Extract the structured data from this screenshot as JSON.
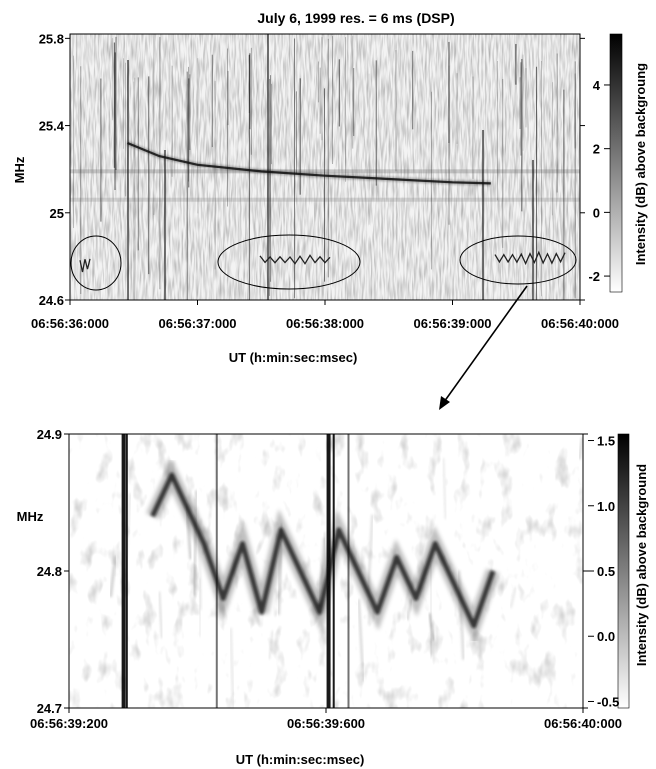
{
  "chart_data": [
    {
      "type": "heatmap",
      "title": "July 6, 1999   res. = 6 ms  (DSP)",
      "xlabel": "UT (h:min:sec:msec)",
      "ylabel": "MHz",
      "x_ticks": [
        "06:56:36:000",
        "06:56:37:000",
        "06:56:38:000",
        "06:56:39:000",
        "06:56:40:000"
      ],
      "x_range_s": [
        0,
        4
      ],
      "y_ticks": [
        "25.8",
        "25.4",
        "25",
        "24.6"
      ],
      "ylim": [
        24.6,
        25.82
      ],
      "colorbar": {
        "label": "Intensity (dB) above backgroung",
        "ticks": [
          "4",
          "2",
          "0",
          "-2"
        ],
        "range": [
          -2.5,
          5.6
        ]
      },
      "features": {
        "drifting_burst": [
          {
            "t": 0.45,
            "f": 25.32
          },
          {
            "t": 0.7,
            "f": 25.26
          },
          {
            "t": 1.0,
            "f": 25.22
          },
          {
            "t": 1.5,
            "f": 25.19
          },
          {
            "t": 2.0,
            "f": 25.17
          },
          {
            "t": 2.5,
            "f": 25.155
          },
          {
            "t": 3.0,
            "f": 25.14
          },
          {
            "t": 3.3,
            "f": 25.135
          }
        ],
        "steady_bands_mhz": [
          25.19,
          25.06
        ]
      }
    },
    {
      "type": "heatmap",
      "xlabel": "UT (h:min:sec:msec)",
      "ylabel": "MHz",
      "x_ticks": [
        "06:56:39:200",
        "06:56:39:600",
        "06:56:40:000"
      ],
      "x_range_s": [
        39.2,
        40.0
      ],
      "y_ticks": [
        "24.9",
        "24.8",
        "24.7"
      ],
      "ylim": [
        24.7,
        24.9
      ],
      "colorbar": {
        "label": "Intensity (dB) above background",
        "ticks": [
          "1.5",
          "1.0",
          "0.5",
          "0.0",
          "-0.5"
        ],
        "range": [
          -0.55,
          1.55
        ]
      },
      "features": {
        "oscillating_trace": [
          {
            "t": 39.33,
            "f": 24.84
          },
          {
            "t": 39.36,
            "f": 24.87
          },
          {
            "t": 39.38,
            "f": 24.85
          },
          {
            "t": 39.41,
            "f": 24.82
          },
          {
            "t": 39.44,
            "f": 24.78
          },
          {
            "t": 39.47,
            "f": 24.82
          },
          {
            "t": 39.5,
            "f": 24.77
          },
          {
            "t": 39.53,
            "f": 24.83
          },
          {
            "t": 39.56,
            "f": 24.8
          },
          {
            "t": 39.59,
            "f": 24.77
          },
          {
            "t": 39.62,
            "f": 24.83
          },
          {
            "t": 39.65,
            "f": 24.8
          },
          {
            "t": 39.68,
            "f": 24.77
          },
          {
            "t": 39.71,
            "f": 24.81
          },
          {
            "t": 39.74,
            "f": 24.78
          },
          {
            "t": 39.77,
            "f": 24.82
          },
          {
            "t": 39.8,
            "f": 24.79
          },
          {
            "t": 39.83,
            "f": 24.76
          },
          {
            "t": 39.86,
            "f": 24.8
          }
        ],
        "vertical_spikes_s": [
          39.285,
          39.29,
          39.43,
          39.604,
          39.612,
          39.635
        ]
      }
    }
  ],
  "colors": {
    "ink": "#000000",
    "background": "#ffffff"
  }
}
